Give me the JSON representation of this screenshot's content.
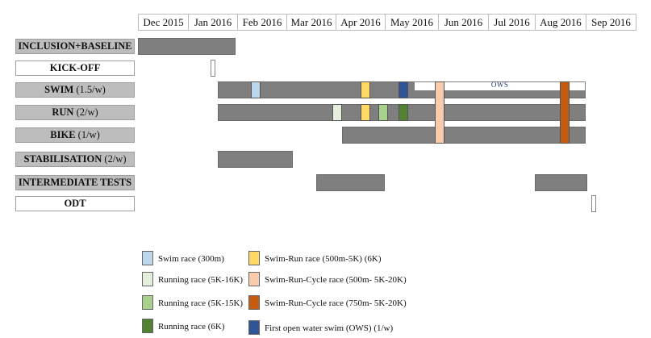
{
  "chart_data": {
    "type": "gantt",
    "months": [
      "Dec 2015",
      "Jan 2016",
      "Feb 2016",
      "Mar 2016",
      "Apr 2016",
      "May 2016",
      "Jun 2016",
      "Jul 2016",
      "Aug 2016",
      "Sep 2016"
    ],
    "rows": [
      {
        "id": "inclusion",
        "label": "INCLUSION+BASELINE",
        "freq": "",
        "style": "grey"
      },
      {
        "id": "kickoff",
        "label": "KICK-OFF",
        "freq": "",
        "style": "white"
      },
      {
        "id": "swim",
        "label": "SWIM",
        "freq": "(1.5/w)",
        "style": "grey"
      },
      {
        "id": "run",
        "label": "RUN",
        "freq": "(2/w)",
        "style": "grey"
      },
      {
        "id": "bike",
        "label": "BIKE",
        "freq": "(1/w)",
        "style": "grey"
      },
      {
        "id": "stabilisation",
        "label": "STABILISATION",
        "freq": "(2/w)",
        "style": "grey"
      },
      {
        "id": "tests",
        "label": "INTERMEDIATE TESTS",
        "freq": "",
        "style": "grey"
      },
      {
        "id": "odt",
        "label": "ODT",
        "freq": "",
        "style": "white"
      }
    ],
    "bars": [
      {
        "row": "inclusion",
        "start": "2015-12-01",
        "end": "2016-01-31"
      },
      {
        "row": "swim",
        "start": "2016-01-20",
        "end": "2016-09-01"
      },
      {
        "row": "run",
        "start": "2016-01-20",
        "end": "2016-09-01"
      },
      {
        "row": "bike",
        "start": "2016-04-05",
        "end": "2016-09-01"
      },
      {
        "row": "stabilisation",
        "start": "2016-01-20",
        "end": "2016-03-05"
      },
      {
        "row": "tests",
        "start": "2016-03-20",
        "end": "2016-05-01"
      },
      {
        "row": "tests",
        "start": "2016-08-01",
        "end": "2016-09-02"
      }
    ],
    "milestones": [
      {
        "row": "kickoff",
        "date": "2016-01-17"
      },
      {
        "row": "odt",
        "date": "2016-09-06"
      }
    ],
    "ows_period": {
      "row": "swim",
      "start": "2016-05-18",
      "end": "2016-09-01",
      "label": "OWS"
    },
    "markers": [
      {
        "row": "swim",
        "date": "2016-02-12",
        "legend": 0
      },
      {
        "row": "swim",
        "date": "2016-04-19",
        "legend": 4
      },
      {
        "row": "swim",
        "date": "2016-05-12",
        "legend": 7
      },
      {
        "row": "swim",
        "date": "2016-06-02",
        "span_to": "bike",
        "legend": 5
      },
      {
        "row": "swim",
        "date": "2016-08-19",
        "span_to": "bike",
        "legend": 6
      },
      {
        "row": "run",
        "date": "2016-04-02",
        "legend": 1
      },
      {
        "row": "run",
        "date": "2016-04-19",
        "legend": 4
      },
      {
        "row": "run",
        "date": "2016-04-30",
        "legend": 2
      },
      {
        "row": "run",
        "date": "2016-05-12",
        "legend": 3
      }
    ],
    "legend": [
      {
        "label": "Swim race (300m)",
        "color": "#bcd6ec"
      },
      {
        "label": "Running race (5K-16K)",
        "color": "#e4efdc"
      },
      {
        "label": "Running race (5K-15K)",
        "color": "#a9d18e"
      },
      {
        "label": "Running race (6K)",
        "color": "#548235"
      },
      {
        "label": "Swim-Run race (500m-5K) (6K)",
        "color": "#ffd966"
      },
      {
        "label": "Swim-Run-Cycle race (500m- 5K-20K)",
        "color": "#f8cbad"
      },
      {
        "label": "Swim-Run-Cycle race (750m- 5K-20K)",
        "color": "#c55a11"
      },
      {
        "label": "First open water swim (OWS) (1/w)",
        "color": "#2f5597"
      }
    ]
  }
}
